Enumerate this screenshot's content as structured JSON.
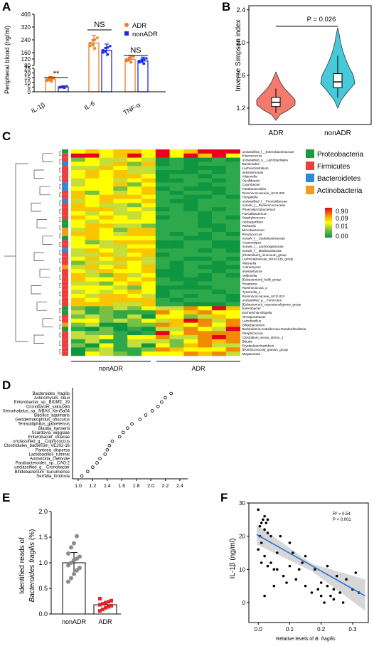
{
  "panel_labels": {
    "a": "A",
    "b": "B",
    "c": "C",
    "d": "D",
    "e": "E",
    "f": "F"
  },
  "colors": {
    "adr": "#f07b28",
    "nonadr": "#1f2bdc",
    "violin_adr": "#f47a6e",
    "violin_nonadr": "#46c9d8",
    "regression": "#2a6fd6",
    "band": "#c9c9c9"
  },
  "chart_data": [
    {
      "id": "A",
      "type": "bar",
      "ylabel": "Peripheral blood (ng/ml)",
      "yticks": [
        "0",
        "5",
        "10",
        "15",
        "20",
        "25",
        "80",
        "120",
        "160",
        "240",
        "320",
        "400"
      ],
      "categories": [
        "IL-1β",
        "IL-6",
        "TNF-α"
      ],
      "legend": [
        "ADR",
        "nonADR"
      ],
      "significance": [
        "**",
        "NS",
        "NS"
      ],
      "series": [
        {
          "name": "ADR",
          "values": [
            13,
            220,
            118
          ]
        },
        {
          "name": "nonADR",
          "values": [
            5,
            175,
            108
          ]
        }
      ]
    },
    {
      "id": "B",
      "type": "violin",
      "ylabel": "Inverse Simpson index",
      "yticks": [
        "1.2",
        "1.6",
        "2.0",
        "2.4"
      ],
      "ylim": [
        1.0,
        2.45
      ],
      "categories": [
        "ADR",
        "nonADR"
      ],
      "annotation": "P = 0.026",
      "medians": [
        1.27,
        1.52
      ],
      "q1": [
        1.22,
        1.45
      ],
      "q3": [
        1.33,
        1.62
      ],
      "whisker_low": [
        1.14,
        1.33
      ],
      "whisker_high": [
        1.44,
        1.84
      ]
    },
    {
      "id": "C",
      "type": "heatmap",
      "groups": [
        "nonADR",
        "ADR"
      ],
      "legend_phyla": [
        {
          "name": "Proteobacteria",
          "color": "#1a9a3e"
        },
        {
          "name": "Firmicutes",
          "color": "#ee3d3d"
        },
        {
          "name": "Bacteroidetes",
          "color": "#2a8ad6"
        },
        {
          "name": "Actinobacteria",
          "color": "#f49b1a"
        }
      ],
      "colorbar_ticks": [
        "0.90",
        "0.09",
        "0.01",
        "0.00"
      ],
      "taxa": [
        "unclassified_f__Enterobacteriaceae",
        "Enterococcus",
        "unclassified_o__Lactobacillales",
        "Bacteroides",
        "Lachnoclostridium",
        "Intestinimonas",
        "Alistonella",
        "Oscillibacter",
        "Coprobacter",
        "Parabacteroides",
        "Ruminococcaceae_UCG-002",
        "Hungatella",
        "unclassified_f__Prevotellaceae",
        "norank_f__Ruminococcaceae",
        "Phascolarctobacterium",
        "Faecalibacterium",
        "Staphylococcus",
        "Herbaspirillum",
        "Ralstonia",
        "Microbacterium",
        "Rhodococcus",
        "norank_f__Caulobacteraceae",
        "Anaerostipes",
        "norank_f__Lachnospiraceae",
        "norank_f__Muribaculaceae",
        "[Clostridium]_innocuum_group",
        "Lachnospiraceae_NK4A136_group",
        "Weissella",
        "Actinomyces",
        "Intestinibacter",
        "Veillonella",
        "[Eubacterium]_hallii_group",
        "Roseburia",
        "Ruminococcus_2",
        "Tyzzerella_4",
        "Ruminococcaceae_UCG-013",
        "unclassified_p__Firmicutes",
        "[Eubacterium]_coprostanoligenes_group",
        "Enterobacter",
        "Escherichia-Shigella",
        "Terrisporobacter",
        "Lactobacillus",
        "Bifidobacterium",
        "Burkholderia-Caballeronia-Paraburkholderia",
        "Streptococcus",
        "Clostridium_sensu_stricto_1",
        "Blautia",
        "Erysipelatoclostridium",
        "[Ruminococcus]_gnavus_group",
        "Megamonas"
      ],
      "phylum_per_row": [
        "P",
        "F",
        "F",
        "B",
        "F",
        "F",
        "F",
        "F",
        "B",
        "B",
        "F",
        "F",
        "B",
        "F",
        "F",
        "F",
        "F",
        "P",
        "P",
        "A",
        "A",
        "P",
        "F",
        "F",
        "B",
        "F",
        "F",
        "F",
        "A",
        "F",
        "F",
        "F",
        "F",
        "F",
        "F",
        "F",
        "F",
        "F",
        "P",
        "P",
        "F",
        "F",
        "A",
        "P",
        "F",
        "F",
        "F",
        "F",
        "F",
        "F"
      ],
      "columns": 12
    },
    {
      "id": "D",
      "type": "scatter",
      "xticks": [
        "1.0",
        "1.2",
        "1.4",
        "1.6",
        "1.8",
        "2.0",
        "2.2",
        "2.4"
      ],
      "xlim": [
        1.0,
        2.45
      ],
      "categories": [
        "Bacteroides_fragilis",
        "Actinomyces_neuii",
        "Enterobacter_sp._BIDMC_29",
        "Cronobacter_sakazakii",
        "Xenorhabdus_sp._NBAII_XenSa04",
        "Bacillus_aquimaris",
        "Geodermatophilus_obscurus",
        "Terracidiphilus_gabretensis",
        "Blautia_hansenii",
        "Scardovia_wiggsiae",
        "Enterobacter_cloacae",
        "unclassified_g__Coprococcus",
        "Clostridiales_bacterium_VE202-16",
        "Pantoea_dispersa",
        "Lactobacillus_ruminis",
        "Austwickia_chelonae",
        "Parabacteroides_sp._CAG:2",
        "unclassified_g__Cronobacter",
        "Bifidobacterium_tsurumiense",
        "Serratia_fonticola"
      ],
      "values": [
        2.28,
        2.2,
        2.15,
        2.1,
        2.02,
        1.93,
        1.85,
        1.74,
        1.68,
        1.62,
        1.57,
        1.47,
        1.43,
        1.4,
        1.37,
        1.3,
        1.26,
        1.2,
        1.13,
        1.05
      ]
    },
    {
      "id": "E",
      "type": "bar",
      "ylabel_line1": "Identified reads of",
      "ylabel_line2": "Bacteroides fragilis",
      "ylabel_suffix": " (%)",
      "yticks": [
        "0.0",
        "0.5",
        "1.0",
        "1.5",
        "2.0"
      ],
      "ylim": [
        0,
        2.0
      ],
      "categories": [
        "nonADR",
        "ADR"
      ],
      "values": [
        1.0,
        0.18
      ],
      "points_nonadr": [
        0.63,
        0.7,
        0.78,
        0.85,
        0.9,
        0.95,
        1.0,
        1.05,
        1.08,
        1.12,
        1.18,
        1.3,
        1.38,
        1.52
      ],
      "points_adr": [
        0.06,
        0.09,
        0.12,
        0.14,
        0.16,
        0.18,
        0.2,
        0.22,
        0.24,
        0.26,
        0.3
      ]
    },
    {
      "id": "F",
      "type": "scatter",
      "ylabel": "IL-1β (ng/ml)",
      "xlabel_prefix": "Relative levels of ",
      "xlabel_italic": "B. fragilis",
      "xticks": [
        "0.0",
        "0.1",
        "0.2",
        "0.3"
      ],
      "yticks": [
        "0",
        "10",
        "20",
        "30"
      ],
      "xlim": [
        -0.03,
        0.35
      ],
      "ylim": [
        -6,
        30
      ],
      "stats": [
        "R² = 0.54",
        "P < 0.001"
      ],
      "regression": {
        "x0": -0.005,
        "y0": 20.5,
        "x1": 0.34,
        "y1": 2
      },
      "points": [
        [
          0,
          28
        ],
        [
          0.005,
          23
        ],
        [
          0.01,
          24
        ],
        [
          0.015,
          25
        ],
        [
          0.02,
          22
        ],
        [
          0.005,
          20
        ],
        [
          0.02,
          26
        ],
        [
          0.025,
          24
        ],
        [
          0.03,
          25
        ],
        [
          0.01,
          18
        ],
        [
          0,
          16
        ],
        [
          0.01,
          12
        ],
        [
          0.02,
          14
        ],
        [
          0.03,
          11
        ],
        [
          0.04,
          12
        ],
        [
          0.06,
          15
        ],
        [
          0.05,
          10
        ],
        [
          0.07,
          20
        ],
        [
          0.08,
          8
        ],
        [
          0.09,
          6
        ],
        [
          0.1,
          11
        ],
        [
          0.1,
          18
        ],
        [
          0.11,
          15
        ],
        [
          0.12,
          7
        ],
        [
          0.13,
          10
        ],
        [
          0.14,
          12
        ],
        [
          0.15,
          14
        ],
        [
          0.15,
          5
        ],
        [
          0.17,
          3
        ],
        [
          0.18,
          10
        ],
        [
          0.19,
          4
        ],
        [
          0.2,
          6
        ],
        [
          0.2,
          2
        ],
        [
          0.21,
          0
        ],
        [
          0.22,
          5
        ],
        [
          0.22,
          11
        ],
        [
          0.23,
          2
        ],
        [
          0.24,
          4
        ],
        [
          0.24,
          1
        ],
        [
          0.25,
          8
        ],
        [
          0.26,
          3
        ],
        [
          0.27,
          0
        ],
        [
          0.28,
          7
        ],
        [
          0.3,
          4
        ],
        [
          0.31,
          9
        ],
        [
          0.32,
          3
        ],
        [
          0.02,
          2
        ],
        [
          0.05,
          5
        ],
        [
          0.06,
          10
        ],
        [
          0.03,
          21
        ],
        [
          0.04,
          20
        ]
      ]
    }
  ]
}
